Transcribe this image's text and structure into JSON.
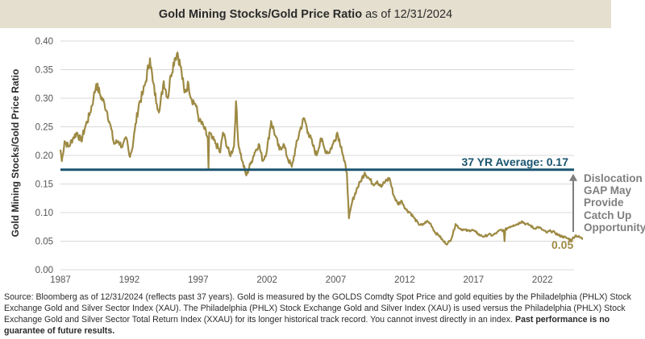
{
  "header": {
    "title_bold": "Gold Mining Stocks/Gold Price Ratio",
    "title_rest": "as of 12/31/2024"
  },
  "annotations": {
    "average_label": "37 YR Average: 0.17",
    "end_value_label": "0.05",
    "gap_note_lines": [
      "Dislocation",
      "GAP May",
      "Provide",
      "Catch Up",
      "Opportunity"
    ]
  },
  "footer": {
    "source_text": "Source: Bloomberg as of 12/31/2024 (reflects past 37 years). Gold is measured by the GOLDS Comdty Spot Price and gold equities by the Philadelphia (PHLX) Stock Exchange Gold and Silver Sector Index (XAU). The Philadelphia (PHLX) Stock Exchange Gold and Silver Index (XAU) is used versus the Philadelphia (PHLX) Stock Exchange Gold and Silver Sector Total Return Index (XXAU) for its longer historical track record. You cannot invest directly in an index.",
    "disclaimer_bold": "Past performance is no guarantee of future results."
  },
  "colors": {
    "series": "#9d8a44",
    "average_line": "#1a5470",
    "arrow": "#7f7f7f",
    "gridline": "#d9d9d9",
    "title_bg": "#e5dfcf"
  },
  "chart_data": {
    "type": "line",
    "title": "Gold Mining Stocks/Gold Price Ratio as of 12/31/2024",
    "xlabel": "",
    "ylabel": "Gold Mining Stocks/Gold Price Ratio",
    "xlim": [
      1987,
      2025
    ],
    "ylim": [
      0,
      0.4
    ],
    "grid": true,
    "x_ticks": [
      "1987",
      "1992",
      "1997",
      "2002",
      "2007",
      "2012",
      "2017",
      "2022"
    ],
    "y_ticks": [
      "0.00",
      "0.05",
      "0.10",
      "0.15",
      "0.20",
      "0.25",
      "0.30",
      "0.35",
      "0.40"
    ],
    "average": 0.175,
    "series": [
      {
        "name": "Gold Mining Stocks/Gold Price Ratio",
        "x": [
          1987.0,
          1987.1,
          1987.3,
          1987.6,
          1987.9,
          1988.2,
          1988.5,
          1988.8,
          1989.1,
          1989.4,
          1989.6,
          1989.9,
          1990.2,
          1990.4,
          1990.6,
          1990.9,
          1991.2,
          1991.5,
          1991.8,
          1992.0,
          1992.2,
          1992.4,
          1992.7,
          1993.0,
          1993.2,
          1993.5,
          1993.7,
          1994.0,
          1994.2,
          1994.5,
          1994.8,
          1995.0,
          1995.3,
          1995.5,
          1995.8,
          1996.0,
          1996.3,
          1996.5,
          1996.8,
          1997.1,
          1997.4,
          1997.7,
          1997.75,
          1997.8,
          1998.0,
          1998.3,
          1998.6,
          1998.8,
          1999.0,
          1999.3,
          1999.6,
          1999.75,
          1999.9,
          2000.2,
          2000.5,
          2000.8,
          2001.1,
          2001.4,
          2001.7,
          2002.0,
          2002.3,
          2002.6,
          2002.9,
          2003.2,
          2003.5,
          2003.8,
          2004.1,
          2004.4,
          2004.7,
          2005.0,
          2005.3,
          2005.6,
          2005.9,
          2006.2,
          2006.5,
          2006.8,
          2007.1,
          2007.4,
          2007.6,
          2007.8,
          2007.95,
          2008.2,
          2008.5,
          2008.8,
          2009.1,
          2009.4,
          2009.7,
          2010.0,
          2010.3,
          2010.6,
          2010.9,
          2011.2,
          2011.5,
          2011.8,
          2012.1,
          2012.4,
          2012.7,
          2013.0,
          2013.3,
          2013.6,
          2013.9,
          2014.2,
          2014.5,
          2014.8,
          2015.1,
          2015.4,
          2015.7,
          2016.0,
          2016.3,
          2016.6,
          2016.9,
          2017.2,
          2017.5,
          2017.8,
          2018.1,
          2018.4,
          2018.7,
          2019.0,
          2019.2,
          2019.25,
          2019.3,
          2019.6,
          2019.9,
          2020.2,
          2020.5,
          2020.8,
          2021.1,
          2021.4,
          2021.7,
          2022.0,
          2022.3,
          2022.6,
          2022.9,
          2023.2,
          2023.5,
          2023.8,
          2024.1,
          2024.4,
          2024.7,
          2024.95
        ],
        "y": [
          0.21,
          0.19,
          0.225,
          0.215,
          0.23,
          0.24,
          0.225,
          0.25,
          0.27,
          0.3,
          0.325,
          0.305,
          0.29,
          0.275,
          0.255,
          0.22,
          0.225,
          0.215,
          0.23,
          0.2,
          0.21,
          0.245,
          0.29,
          0.31,
          0.33,
          0.37,
          0.33,
          0.29,
          0.28,
          0.33,
          0.3,
          0.34,
          0.37,
          0.38,
          0.345,
          0.31,
          0.325,
          0.3,
          0.29,
          0.26,
          0.25,
          0.23,
          0.178,
          0.24,
          0.23,
          0.22,
          0.205,
          0.24,
          0.225,
          0.2,
          0.215,
          0.295,
          0.225,
          0.19,
          0.165,
          0.185,
          0.205,
          0.22,
          0.19,
          0.21,
          0.26,
          0.235,
          0.21,
          0.22,
          0.195,
          0.18,
          0.215,
          0.245,
          0.265,
          0.24,
          0.22,
          0.2,
          0.23,
          0.21,
          0.205,
          0.22,
          0.24,
          0.215,
          0.19,
          0.17,
          0.09,
          0.12,
          0.14,
          0.155,
          0.17,
          0.16,
          0.15,
          0.155,
          0.145,
          0.155,
          0.16,
          0.13,
          0.115,
          0.12,
          0.105,
          0.1,
          0.09,
          0.08,
          0.078,
          0.085,
          0.08,
          0.065,
          0.06,
          0.05,
          0.045,
          0.055,
          0.08,
          0.072,
          0.07,
          0.068,
          0.07,
          0.065,
          0.06,
          0.058,
          0.062,
          0.06,
          0.065,
          0.07,
          0.068,
          0.05,
          0.07,
          0.075,
          0.078,
          0.08,
          0.085,
          0.08,
          0.078,
          0.072,
          0.075,
          0.07,
          0.065,
          0.068,
          0.065,
          0.06,
          0.058,
          0.055,
          0.052,
          0.06,
          0.057,
          0.054
        ]
      }
    ]
  }
}
